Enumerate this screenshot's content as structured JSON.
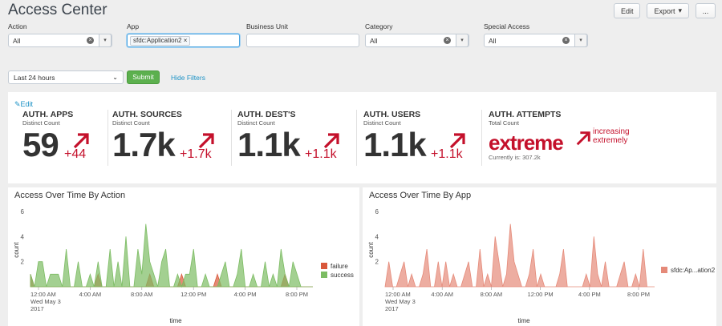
{
  "header": {
    "title": "Access Center",
    "edit_label": "Edit",
    "export_label": "Export",
    "more_label": "..."
  },
  "filters": {
    "action": {
      "label": "Action",
      "value": "All"
    },
    "app": {
      "label": "App",
      "chip": "sfdc:Application2"
    },
    "business_unit": {
      "label": "Business Unit",
      "value": ""
    },
    "category": {
      "label": "Category",
      "value": "All"
    },
    "special_access": {
      "label": "Special Access",
      "value": "All"
    },
    "time_range": "Last 24 hours",
    "submit_label": "Submit",
    "hide_filters_label": "Hide Filters"
  },
  "kpis": {
    "edit_label": "Edit",
    "items": [
      {
        "title": "AUTH. APPS",
        "subtitle": "Distinct Count",
        "value": "59",
        "delta": "+44"
      },
      {
        "title": "AUTH. SOURCES",
        "subtitle": "Distinct Count",
        "value": "1.7k",
        "delta": "+1.7k"
      },
      {
        "title": "AUTH. DEST'S",
        "subtitle": "Distinct Count",
        "value": "1.1k",
        "delta": "+1.1k"
      },
      {
        "title": "AUTH. USERS",
        "subtitle": "Distinct Count",
        "value": "1.1k",
        "delta": "+1.1k"
      },
      {
        "title": "AUTH. ATTEMPTS",
        "subtitle": "Total Count",
        "value": "extreme",
        "trend": "increasing extremely",
        "current": "Currently is: 307.2k"
      }
    ]
  },
  "colors": {
    "accent_red": "#c4102b",
    "failure": "#d9583b",
    "success": "#7cbc63",
    "app_series": "#e58a79",
    "link": "#1e93c6",
    "submit": "#5cb04e"
  },
  "charts": {
    "by_action": {
      "title": "Access Over Time By Action",
      "chart_data": {
        "type": "area",
        "xlabel": "time",
        "ylabel": "count",
        "ylim": [
          0,
          6
        ],
        "yticks": [
          2,
          4,
          6
        ],
        "xtick_labels": [
          "12:00 AM\nWed May 3\n2017",
          "4:00 AM",
          "8:00 AM",
          "12:00 PM",
          "4:00 PM",
          "8:00 PM"
        ],
        "series": [
          {
            "name": "failure",
            "values": [
              1,
              0,
              0,
              0,
              0,
              0,
              0,
              0,
              0,
              0,
              0,
              0,
              0,
              0,
              0,
              0,
              0,
              1,
              0,
              0,
              0,
              0,
              0,
              0,
              0,
              0,
              0,
              0,
              0,
              0,
              1,
              0,
              0,
              0,
              0,
              0,
              0,
              0,
              1,
              0,
              0,
              0,
              0,
              0,
              0,
              0,
              0,
              1,
              0,
              0,
              0,
              0,
              0,
              0,
              0,
              0,
              0,
              0,
              0,
              0,
              0,
              0,
              0,
              0,
              1,
              0,
              0,
              0,
              0,
              0,
              0,
              0
            ]
          },
          {
            "name": "success",
            "values": [
              1,
              0,
              2,
              2,
              0,
              1,
              1,
              1,
              0,
              3,
              0,
              0,
              2,
              0,
              0,
              1,
              0,
              2,
              0,
              0,
              3,
              0,
              2,
              0,
              4,
              0,
              0,
              3,
              1,
              5,
              2,
              1,
              0,
              2,
              3,
              0,
              0,
              1,
              0,
              1,
              1,
              3,
              0,
              0,
              1,
              0,
              0,
              0,
              1,
              2,
              0,
              0,
              1,
              3,
              0,
              0,
              1,
              0,
              0,
              2,
              0,
              1,
              0,
              3,
              1,
              0,
              2,
              1,
              0,
              0,
              0,
              0
            ]
          }
        ],
        "legend": "right"
      }
    },
    "by_app": {
      "title": "Access Over Time By App",
      "chart_data": {
        "type": "area",
        "xlabel": "time",
        "ylabel": "count",
        "ylim": [
          0,
          6
        ],
        "yticks": [
          2,
          4,
          6
        ],
        "xtick_labels": [
          "12:00 AM\nWed May 3\n2017",
          "4:00 AM",
          "8:00 AM",
          "12:00 PM",
          "4:00 PM",
          "8:00 PM"
        ],
        "series": [
          {
            "name": "sfdc:Ap...ation2",
            "values": [
              0,
              2,
              0,
              0,
              1,
              2,
              0,
              1,
              0,
              0,
              1,
              3,
              0,
              0,
              2,
              0,
              2,
              0,
              1,
              0,
              0,
              1,
              2,
              0,
              0,
              3,
              0,
              1,
              0,
              4,
              2,
              0,
              1,
              5,
              2,
              1,
              0,
              0,
              1,
              3,
              0,
              1,
              0,
              0,
              0,
              0,
              1,
              3,
              0,
              0,
              0,
              0,
              0,
              1,
              0,
              4,
              1,
              0,
              2,
              0,
              0,
              0,
              1,
              2,
              0,
              0,
              1,
              0,
              3,
              0,
              0,
              0
            ]
          }
        ],
        "legend": "right"
      }
    }
  }
}
